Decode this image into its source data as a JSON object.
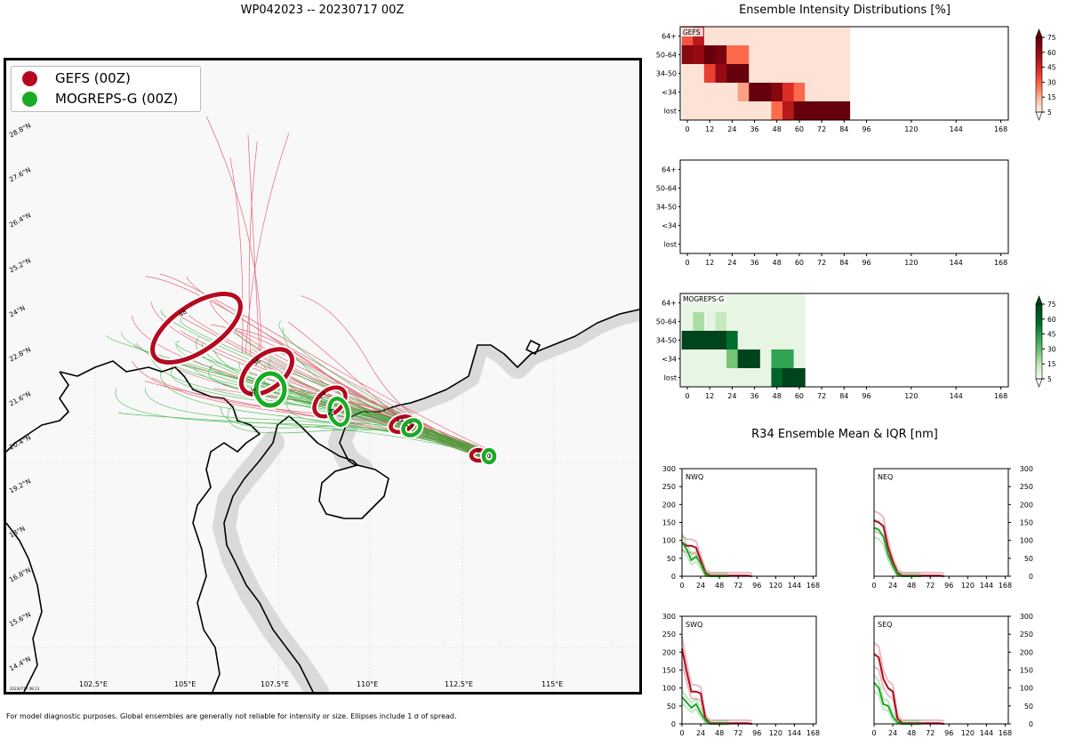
{
  "header": {
    "title": "WP042023 -- 20230717 00Z"
  },
  "legend": {
    "items": [
      {
        "label": "GEFS (00Z)",
        "color": "#b5091f"
      },
      {
        "label": "MOGREPS-G (00Z)",
        "color": "#1aab24"
      }
    ]
  },
  "map": {
    "lat_labels": [
      "28.8°N",
      "27.6°N",
      "26.4°N",
      "25.2°N",
      "24°N",
      "22.8°N",
      "21.6°N",
      "20.4°N",
      "19.2°N",
      "18°N",
      "16.8°N",
      "15.6°N",
      "14.4°N"
    ],
    "lon_labels": [
      "102.5°E",
      "105°E",
      "107.5°E",
      "110°E",
      "112.5°E",
      "115°E"
    ],
    "ellipse_hours": [
      {
        "model": "GEFS",
        "hour": "48"
      },
      {
        "model": "GEFS",
        "hour": "36"
      },
      {
        "model": "GEFS",
        "hour": "24"
      },
      {
        "model": "GEFS",
        "hour": "12"
      },
      {
        "model": "GEFS",
        "hour": "0"
      },
      {
        "model": "MOGREPS-G",
        "hour": "36"
      },
      {
        "model": "MOGREPS-G",
        "hour": "24"
      },
      {
        "model": "MOGREPS-G",
        "hour": "12"
      },
      {
        "model": "MOGREPS-G",
        "hour": "0"
      }
    ],
    "timestamp": "20230717 08:13"
  },
  "footnote": "For model diagnostic purposes. Global ensembles are generally not reliable for intensity or size. Ellipses include 1 σ of spread.",
  "intensity": {
    "title": "Ensemble Intensity Distributions [%]",
    "categories": [
      "64+",
      "50-64",
      "34-50",
      "<34",
      "lost"
    ],
    "x_ticks": [
      "0",
      "12",
      "24",
      "36",
      "48",
      "60",
      "72",
      "84",
      "96",
      "120",
      "144",
      "168"
    ],
    "colorbar_ticks": [
      "75",
      "60",
      "45",
      "30",
      "15",
      "5"
    ],
    "panels": [
      {
        "name": "GEFS",
        "label": "GEFS",
        "colorscale": "red"
      },
      {
        "name": "empty",
        "label": "",
        "colorscale": "none"
      },
      {
        "name": "MOGREPS-G",
        "label": "MOGREPS-G",
        "colorscale": "green"
      }
    ]
  },
  "r34": {
    "title": "R34 Ensemble Mean & IQR [nm]",
    "y_ticks": [
      "0",
      "50",
      "100",
      "150",
      "200",
      "250",
      "300"
    ],
    "x_ticks": [
      "0",
      "24",
      "48",
      "72",
      "96",
      "120",
      "144",
      "168"
    ],
    "quadrants": [
      {
        "label": "NWQ"
      },
      {
        "label": "NEQ"
      },
      {
        "label": "SWQ"
      },
      {
        "label": "SEQ"
      }
    ]
  },
  "chart_data": [
    {
      "type": "heatmap",
      "title": "GEFS",
      "x": [
        0,
        6,
        12,
        18,
        24,
        30,
        36,
        42,
        48,
        54,
        60,
        66,
        72,
        78,
        84
      ],
      "y": [
        "64+",
        "50-64",
        "34-50",
        "<34",
        "lost"
      ],
      "values": [
        [
          35,
          55,
          5,
          5,
          5,
          5,
          5,
          5,
          5,
          5,
          5,
          5,
          5,
          5,
          5
        ],
        [
          70,
          65,
          90,
          75,
          30,
          30,
          5,
          5,
          5,
          5,
          5,
          5,
          5,
          5,
          5
        ],
        [
          5,
          5,
          40,
          65,
          80,
          80,
          5,
          5,
          5,
          5,
          5,
          5,
          5,
          5,
          5
        ],
        [
          5,
          5,
          5,
          5,
          5,
          20,
          90,
          90,
          70,
          45,
          30,
          5,
          5,
          5,
          5
        ],
        [
          5,
          5,
          5,
          5,
          5,
          5,
          5,
          5,
          30,
          55,
          80,
          95,
          95,
          95,
          95
        ]
      ],
      "colorbar": [
        5,
        15,
        30,
        45,
        60,
        75
      ]
    },
    {
      "type": "heatmap",
      "title": "",
      "x": [],
      "y": [
        "64+",
        "50-64",
        "34-50",
        "<34",
        "lost"
      ],
      "values": []
    },
    {
      "type": "heatmap",
      "title": "MOGREPS-G",
      "x": [
        0,
        6,
        12,
        18,
        24,
        30,
        36,
        42,
        48,
        54,
        60
      ],
      "y": [
        "64+",
        "50-64",
        "34-50",
        "<34",
        "lost"
      ],
      "values": [
        [
          5,
          5,
          5,
          5,
          5,
          5,
          5,
          5,
          5,
          5,
          5
        ],
        [
          5,
          20,
          5,
          15,
          5,
          5,
          5,
          5,
          5,
          5,
          5
        ],
        [
          95,
          95,
          95,
          95,
          60,
          5,
          5,
          5,
          5,
          5,
          5
        ],
        [
          5,
          5,
          5,
          5,
          30,
          80,
          95,
          5,
          45,
          45,
          5
        ],
        [
          5,
          5,
          5,
          5,
          5,
          5,
          5,
          5,
          65,
          95,
          95
        ]
      ],
      "colorbar": [
        5,
        15,
        30,
        45,
        60,
        75
      ]
    },
    {
      "type": "line",
      "title": "NWQ",
      "ylim": [
        0,
        300
      ],
      "xlim": [
        0,
        168
      ],
      "series": [
        {
          "name": "GEFS mean",
          "x": [
            0,
            6,
            12,
            18,
            24,
            30,
            36,
            48,
            60,
            72,
            84,
            90
          ],
          "values": [
            95,
            85,
            85,
            80,
            45,
            10,
            2,
            2,
            2,
            2,
            2,
            0
          ]
        },
        {
          "name": "MOGREPS-G mean",
          "x": [
            0,
            6,
            12,
            18,
            24,
            30,
            36,
            48,
            60
          ],
          "values": [
            95,
            75,
            45,
            55,
            35,
            5,
            0,
            0,
            0
          ]
        }
      ]
    },
    {
      "type": "line",
      "title": "NEQ",
      "ylim": [
        0,
        300
      ],
      "xlim": [
        0,
        168
      ],
      "series": [
        {
          "name": "GEFS mean",
          "x": [
            0,
            6,
            12,
            18,
            24,
            30,
            36,
            48,
            60,
            72,
            84,
            90
          ],
          "values": [
            155,
            150,
            140,
            80,
            40,
            10,
            2,
            2,
            2,
            2,
            2,
            0
          ]
        },
        {
          "name": "MOGREPS-G mean",
          "x": [
            0,
            6,
            12,
            18,
            24,
            30,
            36,
            48,
            60
          ],
          "values": [
            135,
            130,
            110,
            60,
            30,
            5,
            0,
            0,
            0
          ]
        }
      ]
    },
    {
      "type": "line",
      "title": "SWQ",
      "ylim": [
        0,
        300
      ],
      "xlim": [
        0,
        168
      ],
      "series": [
        {
          "name": "GEFS mean",
          "x": [
            0,
            6,
            12,
            18,
            24,
            30,
            36,
            48,
            60,
            72,
            84,
            90
          ],
          "values": [
            210,
            145,
            90,
            90,
            85,
            15,
            2,
            2,
            2,
            2,
            2,
            0
          ]
        },
        {
          "name": "MOGREPS-G mean",
          "x": [
            0,
            6,
            12,
            18,
            24,
            30,
            36,
            48,
            60
          ],
          "values": [
            75,
            60,
            45,
            55,
            30,
            10,
            0,
            0,
            0
          ]
        }
      ]
    },
    {
      "type": "line",
      "title": "SEQ",
      "ylim": [
        0,
        300
      ],
      "xlim": [
        0,
        168
      ],
      "series": [
        {
          "name": "GEFS mean",
          "x": [
            0,
            6,
            12,
            18,
            24,
            30,
            36,
            48,
            60,
            72,
            84,
            90
          ],
          "values": [
            195,
            185,
            125,
            100,
            90,
            15,
            2,
            2,
            2,
            2,
            2,
            0
          ]
        },
        {
          "name": "MOGREPS-G mean",
          "x": [
            0,
            6,
            12,
            18,
            24,
            30,
            36,
            48,
            60
          ],
          "values": [
            115,
            100,
            55,
            50,
            20,
            5,
            0,
            0,
            0
          ]
        }
      ]
    }
  ]
}
